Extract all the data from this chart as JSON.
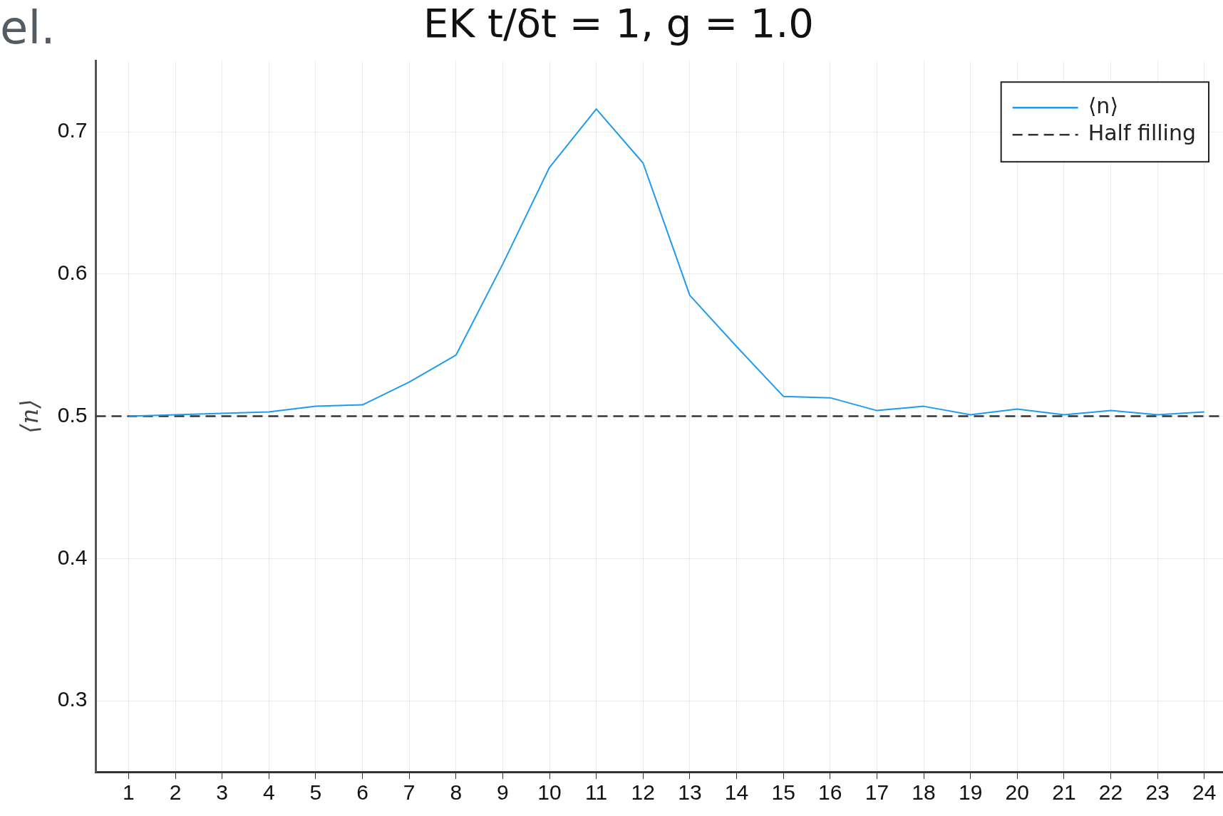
{
  "chart_data": {
    "type": "line",
    "title": "EK t/δt = 1, g = 1.0",
    "ylabel": "⟨n⟩",
    "annotations": [
      "el."
    ],
    "x": [
      1,
      2,
      3,
      4,
      5,
      6,
      7,
      8,
      9,
      10,
      11,
      12,
      13,
      14,
      15,
      16,
      17,
      18,
      19,
      20,
      21,
      22,
      23,
      24
    ],
    "series": [
      {
        "name": "⟨n⟩",
        "color": "#1e9bf0",
        "values": [
          0.5,
          0.501,
          0.502,
          0.503,
          0.507,
          0.508,
          0.524,
          0.543,
          0.607,
          0.675,
          0.716,
          0.678,
          0.585,
          0.549,
          0.514,
          0.513,
          0.504,
          0.507,
          0.501,
          0.505,
          0.501,
          0.504,
          0.501,
          0.503
        ]
      }
    ],
    "ref_lines": [
      {
        "axis": "y",
        "value": 0.5,
        "label": "Half filling",
        "color": "#333333",
        "line_style": "dashed"
      }
    ],
    "xlim": [
      0.3,
      24.4
    ],
    "xticks": [
      1,
      2,
      3,
      4,
      5,
      6,
      7,
      8,
      9,
      10,
      11,
      12,
      13,
      14,
      15,
      16,
      17,
      18,
      19,
      20,
      21,
      22,
      23,
      24
    ],
    "ylim": [
      0.25,
      0.75
    ],
    "yticks": [
      0.3,
      0.4,
      0.5,
      0.6,
      0.7
    ],
    "grid": true,
    "legend": "top right",
    "marker": "none",
    "line_style": "solid"
  }
}
